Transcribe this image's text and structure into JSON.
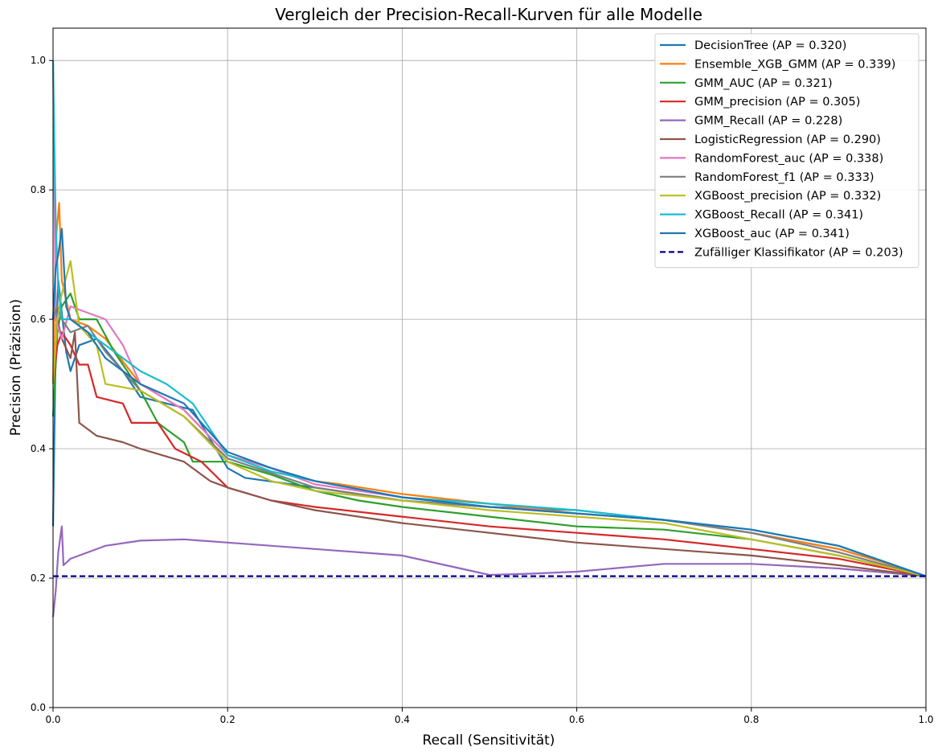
{
  "chart_data": {
    "type": "line",
    "title": "Vergleich der Precision-Recall-Kurven für alle Modelle",
    "xlabel": "Recall (Sensitivität)",
    "ylabel": "Precision (Präzision)",
    "xlim": [
      0,
      1
    ],
    "ylim": [
      0,
      1.05
    ],
    "xticks": [
      "0.0",
      "0.2",
      "0.4",
      "0.6",
      "0.8",
      "1.0"
    ],
    "yticks": [
      "0.0",
      "0.2",
      "0.4",
      "0.6",
      "0.8",
      "1.0"
    ],
    "grid": true,
    "legend_position": "top-right",
    "series": [
      {
        "name": "DecisionTree (AP = 0.320)",
        "color": "#1f77b4",
        "style": "solid",
        "points": [
          [
            0,
            0.28
          ],
          [
            0.003,
            0.56
          ],
          [
            0.006,
            0.66
          ],
          [
            0.01,
            0.61
          ],
          [
            0.015,
            0.55
          ],
          [
            0.02,
            0.52
          ],
          [
            0.03,
            0.56
          ],
          [
            0.05,
            0.57
          ],
          [
            0.08,
            0.52
          ],
          [
            0.1,
            0.48
          ],
          [
            0.13,
            0.47
          ],
          [
            0.16,
            0.46
          ],
          [
            0.2,
            0.37
          ],
          [
            0.22,
            0.355
          ],
          [
            0.3,
            0.34
          ],
          [
            0.4,
            0.32
          ],
          [
            0.5,
            0.31
          ],
          [
            0.6,
            0.305
          ],
          [
            0.7,
            0.29
          ],
          [
            0.8,
            0.27
          ],
          [
            0.9,
            0.245
          ],
          [
            0.95,
            0.225
          ],
          [
            1.0,
            0.203
          ]
        ]
      },
      {
        "name": "Ensemble_XGB_GMM (AP = 0.339)",
        "color": "#ff7f0e",
        "style": "solid",
        "points": [
          [
            0,
            0.5
          ],
          [
            0.003,
            0.72
          ],
          [
            0.007,
            0.78
          ],
          [
            0.01,
            0.66
          ],
          [
            0.02,
            0.6
          ],
          [
            0.04,
            0.59
          ],
          [
            0.06,
            0.57
          ],
          [
            0.1,
            0.5
          ],
          [
            0.15,
            0.46
          ],
          [
            0.2,
            0.39
          ],
          [
            0.25,
            0.37
          ],
          [
            0.3,
            0.35
          ],
          [
            0.33,
            0.345
          ],
          [
            0.4,
            0.33
          ],
          [
            0.5,
            0.315
          ],
          [
            0.6,
            0.3
          ],
          [
            0.7,
            0.29
          ],
          [
            0.8,
            0.27
          ],
          [
            0.9,
            0.245
          ],
          [
            0.95,
            0.225
          ],
          [
            1.0,
            0.203
          ]
        ]
      },
      {
        "name": "GMM_AUC (AP = 0.321)",
        "color": "#2ca02c",
        "style": "solid",
        "points": [
          [
            0,
            0.45
          ],
          [
            0.005,
            0.58
          ],
          [
            0.01,
            0.62
          ],
          [
            0.02,
            0.64
          ],
          [
            0.03,
            0.6
          ],
          [
            0.05,
            0.6
          ],
          [
            0.07,
            0.55
          ],
          [
            0.1,
            0.49
          ],
          [
            0.12,
            0.44
          ],
          [
            0.15,
            0.41
          ],
          [
            0.16,
            0.38
          ],
          [
            0.2,
            0.38
          ],
          [
            0.25,
            0.36
          ],
          [
            0.3,
            0.335
          ],
          [
            0.35,
            0.32
          ],
          [
            0.4,
            0.31
          ],
          [
            0.5,
            0.295
          ],
          [
            0.6,
            0.28
          ],
          [
            0.7,
            0.275
          ],
          [
            0.8,
            0.26
          ],
          [
            0.9,
            0.235
          ],
          [
            1.0,
            0.203
          ]
        ]
      },
      {
        "name": "GMM_precision (AP = 0.305)",
        "color": "#d62728",
        "style": "solid",
        "points": [
          [
            0,
            0.5
          ],
          [
            0.005,
            0.56
          ],
          [
            0.01,
            0.58
          ],
          [
            0.02,
            0.56
          ],
          [
            0.03,
            0.53
          ],
          [
            0.04,
            0.53
          ],
          [
            0.05,
            0.48
          ],
          [
            0.08,
            0.47
          ],
          [
            0.09,
            0.44
          ],
          [
            0.12,
            0.44
          ],
          [
            0.14,
            0.4
          ],
          [
            0.17,
            0.38
          ],
          [
            0.2,
            0.34
          ],
          [
            0.25,
            0.32
          ],
          [
            0.3,
            0.31
          ],
          [
            0.4,
            0.295
          ],
          [
            0.5,
            0.28
          ],
          [
            0.6,
            0.27
          ],
          [
            0.7,
            0.26
          ],
          [
            0.8,
            0.245
          ],
          [
            0.9,
            0.23
          ],
          [
            1.0,
            0.203
          ]
        ]
      },
      {
        "name": "GMM_Recall (AP = 0.228)",
        "color": "#9467bd",
        "style": "solid",
        "points": [
          [
            0,
            0.14
          ],
          [
            0.003,
            0.18
          ],
          [
            0.006,
            0.24
          ],
          [
            0.01,
            0.28
          ],
          [
            0.012,
            0.22
          ],
          [
            0.02,
            0.23
          ],
          [
            0.04,
            0.24
          ],
          [
            0.06,
            0.25
          ],
          [
            0.1,
            0.258
          ],
          [
            0.15,
            0.26
          ],
          [
            0.2,
            0.255
          ],
          [
            0.3,
            0.245
          ],
          [
            0.4,
            0.235
          ],
          [
            0.45,
            0.22
          ],
          [
            0.5,
            0.205
          ],
          [
            0.55,
            0.207
          ],
          [
            0.6,
            0.21
          ],
          [
            0.7,
            0.222
          ],
          [
            0.8,
            0.222
          ],
          [
            0.9,
            0.215
          ],
          [
            1.0,
            0.203
          ]
        ]
      },
      {
        "name": "LogisticRegression (AP = 0.290)",
        "color": "#8c564b",
        "style": "solid",
        "points": [
          [
            0,
            0.5
          ],
          [
            0.005,
            0.6
          ],
          [
            0.01,
            0.57
          ],
          [
            0.02,
            0.54
          ],
          [
            0.025,
            0.58
          ],
          [
            0.03,
            0.44
          ],
          [
            0.05,
            0.42
          ],
          [
            0.08,
            0.41
          ],
          [
            0.1,
            0.4
          ],
          [
            0.15,
            0.38
          ],
          [
            0.18,
            0.35
          ],
          [
            0.2,
            0.34
          ],
          [
            0.25,
            0.32
          ],
          [
            0.3,
            0.305
          ],
          [
            0.4,
            0.285
          ],
          [
            0.5,
            0.27
          ],
          [
            0.6,
            0.255
          ],
          [
            0.7,
            0.245
          ],
          [
            0.8,
            0.235
          ],
          [
            0.9,
            0.22
          ],
          [
            1.0,
            0.203
          ]
        ]
      },
      {
        "name": "RandomForest_auc (AP = 0.338)",
        "color": "#e377c2",
        "style": "solid",
        "points": [
          [
            0,
            1.0
          ],
          [
            0.003,
            0.6
          ],
          [
            0.01,
            0.57
          ],
          [
            0.02,
            0.62
          ],
          [
            0.04,
            0.61
          ],
          [
            0.06,
            0.6
          ],
          [
            0.08,
            0.56
          ],
          [
            0.1,
            0.5
          ],
          [
            0.15,
            0.46
          ],
          [
            0.2,
            0.39
          ],
          [
            0.25,
            0.37
          ],
          [
            0.3,
            0.345
          ],
          [
            0.4,
            0.325
          ],
          [
            0.5,
            0.31
          ],
          [
            0.56,
            0.305
          ]
        ]
      },
      {
        "name": "RandomForest_f1 (AP = 0.333)",
        "color": "#7f7f7f",
        "style": "solid",
        "points": [
          [
            0,
            0.6
          ],
          [
            0.005,
            0.62
          ],
          [
            0.01,
            0.6
          ],
          [
            0.02,
            0.58
          ],
          [
            0.04,
            0.59
          ],
          [
            0.06,
            0.55
          ],
          [
            0.1,
            0.49
          ],
          [
            0.15,
            0.45
          ],
          [
            0.2,
            0.385
          ],
          [
            0.3,
            0.34
          ],
          [
            0.4,
            0.32
          ],
          [
            0.5,
            0.31
          ],
          [
            0.6,
            0.3
          ],
          [
            0.7,
            0.29
          ],
          [
            0.8,
            0.27
          ],
          [
            0.9,
            0.24
          ],
          [
            1.0,
            0.203
          ]
        ]
      },
      {
        "name": "XGBoost_precision (AP = 0.332)",
        "color": "#bcbd22",
        "style": "solid",
        "points": [
          [
            0,
            0.5
          ],
          [
            0.005,
            0.6
          ],
          [
            0.01,
            0.64
          ],
          [
            0.02,
            0.69
          ],
          [
            0.03,
            0.59
          ],
          [
            0.05,
            0.56
          ],
          [
            0.06,
            0.5
          ],
          [
            0.1,
            0.49
          ],
          [
            0.15,
            0.45
          ],
          [
            0.2,
            0.38
          ],
          [
            0.25,
            0.35
          ],
          [
            0.3,
            0.335
          ],
          [
            0.4,
            0.32
          ],
          [
            0.5,
            0.305
          ],
          [
            0.6,
            0.295
          ],
          [
            0.7,
            0.285
          ],
          [
            0.8,
            0.26
          ],
          [
            0.9,
            0.235
          ],
          [
            1.0,
            0.203
          ]
        ]
      },
      {
        "name": "XGBoost_Recall (AP = 0.341)",
        "color": "#17becf",
        "style": "solid",
        "points": [
          [
            0,
            1.0
          ],
          [
            0.003,
            0.75
          ],
          [
            0.006,
            0.65
          ],
          [
            0.01,
            0.6
          ],
          [
            0.02,
            0.6
          ],
          [
            0.04,
            0.58
          ],
          [
            0.06,
            0.56
          ],
          [
            0.1,
            0.52
          ],
          [
            0.13,
            0.5
          ],
          [
            0.16,
            0.47
          ],
          [
            0.2,
            0.39
          ],
          [
            0.25,
            0.365
          ],
          [
            0.3,
            0.35
          ],
          [
            0.4,
            0.325
          ],
          [
            0.5,
            0.315
          ],
          [
            0.6,
            0.305
          ],
          [
            0.7,
            0.29
          ],
          [
            0.8,
            0.275
          ],
          [
            0.9,
            0.25
          ],
          [
            1.0,
            0.203
          ]
        ]
      },
      {
        "name": "XGBoost_auc (AP = 0.341)",
        "color": "#1f77b4",
        "style": "solid",
        "points": [
          [
            0,
            0.6
          ],
          [
            0.003,
            0.68
          ],
          [
            0.006,
            0.7
          ],
          [
            0.01,
            0.74
          ],
          [
            0.015,
            0.62
          ],
          [
            0.02,
            0.6
          ],
          [
            0.04,
            0.58
          ],
          [
            0.06,
            0.54
          ],
          [
            0.1,
            0.5
          ],
          [
            0.15,
            0.47
          ],
          [
            0.2,
            0.395
          ],
          [
            0.25,
            0.37
          ],
          [
            0.3,
            0.35
          ],
          [
            0.4,
            0.325
          ],
          [
            0.5,
            0.31
          ],
          [
            0.6,
            0.3
          ],
          [
            0.7,
            0.29
          ],
          [
            0.8,
            0.275
          ],
          [
            0.9,
            0.25
          ],
          [
            1.0,
            0.203
          ]
        ]
      },
      {
        "name": "Zufälliger Klassifikator (AP = 0.203)",
        "color": "#00008b",
        "style": "dashed",
        "points": [
          [
            0,
            0.203
          ],
          [
            1,
            0.203
          ]
        ]
      }
    ]
  }
}
